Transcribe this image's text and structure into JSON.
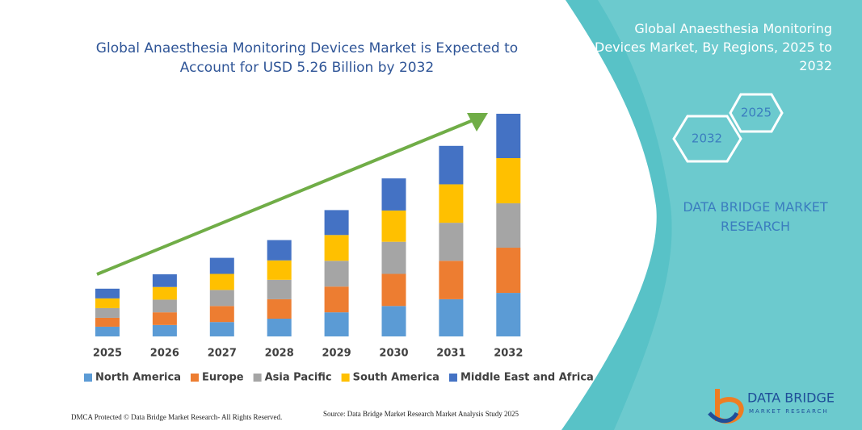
{
  "chart_data": {
    "type": "stacked_bar",
    "title": "Global Anaesthesia Monitoring Devices Market is Expected to Account for USD 5.26 Billion by 2032",
    "categories": [
      "2025",
      "2026",
      "2027",
      "2028",
      "2029",
      "2030",
      "2031",
      "2032"
    ],
    "series": [
      {
        "name": "North America",
        "color": "#5b9bd5",
        "values": [
          0.23,
          0.27,
          0.34,
          0.42,
          0.57,
          0.72,
          0.88,
          1.03
        ]
      },
      {
        "name": "Europe",
        "color": "#ed7d31",
        "values": [
          0.21,
          0.3,
          0.38,
          0.46,
          0.61,
          0.76,
          0.91,
          1.07
        ]
      },
      {
        "name": "Asia Pacific",
        "color": "#a5a5a5",
        "values": [
          0.23,
          0.3,
          0.38,
          0.46,
          0.61,
          0.76,
          0.9,
          1.05
        ]
      },
      {
        "name": "South America",
        "color": "#ffc000",
        "values": [
          0.23,
          0.3,
          0.38,
          0.46,
          0.61,
          0.74,
          0.91,
          1.07
        ]
      },
      {
        "name": "Middle East and Africa",
        "color": "#4472c4",
        "values": [
          0.23,
          0.3,
          0.38,
          0.48,
          0.59,
          0.76,
          0.91,
          1.05
        ]
      }
    ],
    "legend": "bottom"
  },
  "panel": {
    "title": "Global Anaesthesia Monitoring Devices Market, By Regions, 2025 to 2032",
    "hex_back": "2025",
    "hex_front": "2032",
    "brand": "DATA BRIDGE MARKET RESEARCH"
  },
  "logo": {
    "name": "DATA BRIDGE",
    "tagline": "MARKET RESEARCH"
  },
  "footer": {
    "dmca": "DMCA Protected © Data Bridge Market Research- All Rights Reserved.",
    "source": "Source: Data Bridge Market Research Market Analysis Study 2025"
  }
}
